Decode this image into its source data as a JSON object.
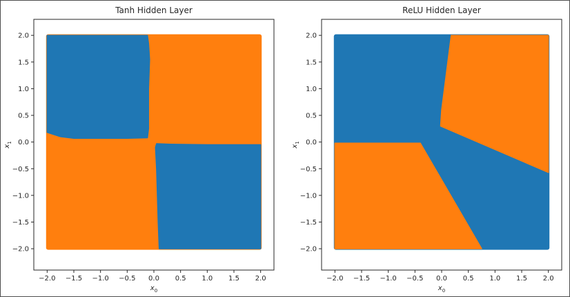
{
  "colors": {
    "class_a": "#1f77b4",
    "class_b": "#ff7f0e",
    "axis": "#262626"
  },
  "chart_data": [
    {
      "type": "scatter",
      "title": "Tanh Hidden Layer",
      "xlabel": "x",
      "xlabel_subscript": "0",
      "ylabel": "x",
      "ylabel_subscript": "1",
      "xlim": [
        -2.25,
        2.25
      ],
      "ylim": [
        -2.4,
        2.3
      ],
      "xticks": [
        -2.0,
        -1.5,
        -1.0,
        -0.5,
        0.0,
        0.5,
        1.0,
        1.5,
        2.0
      ],
      "yticks": [
        -2.0,
        -1.5,
        -1.0,
        -0.5,
        0.0,
        0.5,
        1.0,
        1.5,
        2.0
      ],
      "xtick_labels": [
        "−2.0",
        "−1.5",
        "−1.0",
        "−0.5",
        "0.0",
        "0.5",
        "1.0",
        "1.5",
        "2.0"
      ],
      "ytick_labels": [
        "−2.0",
        "−1.5",
        "−1.0",
        "−0.5",
        "0.0",
        "0.5",
        "1.0",
        "1.5",
        "2.0"
      ],
      "grid": false,
      "background_class": "class_b",
      "regions": [
        {
          "name": "blue-region-top-left",
          "color": "class_a",
          "points": [
            [
              -2.0,
              0.18
            ],
            [
              -1.75,
              0.1
            ],
            [
              -1.5,
              0.07
            ],
            [
              -1.0,
              0.07
            ],
            [
              -0.5,
              0.07
            ],
            [
              -0.12,
              0.08
            ],
            [
              -0.1,
              0.25
            ],
            [
              -0.1,
              1.0
            ],
            [
              -0.08,
              1.55
            ],
            [
              -0.1,
              1.85
            ],
            [
              -0.12,
              2.0
            ],
            [
              -2.0,
              2.0
            ]
          ]
        },
        {
          "name": "blue-region-bottom-right",
          "color": "class_a",
          "points": [
            [
              0.05,
              -0.03
            ],
            [
              0.3,
              -0.04
            ],
            [
              1.0,
              -0.05
            ],
            [
              1.5,
              -0.05
            ],
            [
              2.0,
              -0.05
            ],
            [
              2.0,
              -2.0
            ],
            [
              0.1,
              -2.0
            ],
            [
              0.08,
              -1.5
            ],
            [
              0.05,
              -0.5
            ],
            [
              0.03,
              -0.1
            ]
          ]
        }
      ]
    },
    {
      "type": "scatter",
      "title": "ReLU Hidden Layer",
      "xlabel": "x",
      "xlabel_subscript": "0",
      "ylabel": "x",
      "ylabel_subscript": "1",
      "xlim": [
        -2.25,
        2.25
      ],
      "ylim": [
        -2.4,
        2.3
      ],
      "xticks": [
        -2.0,
        -1.5,
        -1.0,
        -0.5,
        0.0,
        0.5,
        1.0,
        1.5,
        2.0
      ],
      "yticks": [
        -2.0,
        -1.5,
        -1.0,
        -0.5,
        0.0,
        0.5,
        1.0,
        1.5,
        2.0
      ],
      "xtick_labels": [
        "−2.0",
        "−1.5",
        "−1.0",
        "−0.5",
        "0.0",
        "0.5",
        "1.0",
        "1.5",
        "2.0"
      ],
      "ytick_labels": [
        "−2.0",
        "−1.5",
        "−1.0",
        "−0.5",
        "0.0",
        "0.5",
        "1.0",
        "1.5",
        "2.0"
      ],
      "grid": false,
      "background_class": "class_a",
      "regions": [
        {
          "name": "orange-region-top-right",
          "color": "class_b",
          "points": [
            [
              0.18,
              2.0
            ],
            [
              2.0,
              2.0
            ],
            [
              2.0,
              -0.57
            ],
            [
              -0.02,
              0.3
            ],
            [
              0.0,
              0.6
            ]
          ]
        },
        {
          "name": "orange-region-bottom-left",
          "color": "class_b",
          "points": [
            [
              -2.0,
              -0.02
            ],
            [
              -0.4,
              -0.02
            ],
            [
              0.75,
              -2.0
            ],
            [
              -2.0,
              -2.0
            ]
          ]
        }
      ]
    }
  ]
}
